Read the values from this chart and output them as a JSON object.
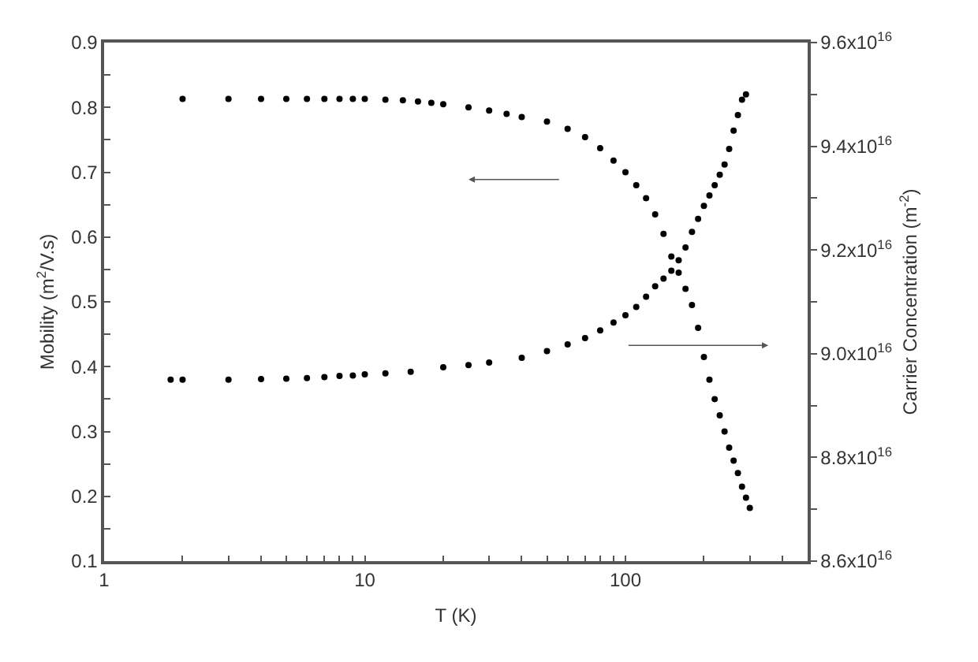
{
  "chart_data": {
    "type": "scatter",
    "xlabel": "T (K)",
    "ylabel": "Mobility (m$^{2}$/V.s)",
    "y2label": "Carrier Concentration (m$^{-2}$)",
    "log": "x",
    "grid": false,
    "marker": "circle",
    "xlim": [
      1,
      500
    ],
    "xticks": [
      1,
      {
        "value": 2,
        "label": null
      },
      {
        "value": 3,
        "label": null
      },
      {
        "value": 4,
        "label": null
      },
      {
        "value": 5,
        "label": null
      },
      {
        "value": 6,
        "label": null
      },
      {
        "value": 7,
        "label": null
      },
      {
        "value": 8,
        "label": null
      },
      {
        "value": 9,
        "label": null
      },
      10,
      {
        "value": 20,
        "label": null
      },
      {
        "value": 30,
        "label": null
      },
      {
        "value": 40,
        "label": null
      },
      {
        "value": 50,
        "label": null
      },
      {
        "value": 60,
        "label": null
      },
      {
        "value": 70,
        "label": null
      },
      {
        "value": 80,
        "label": null
      },
      {
        "value": 90,
        "label": null
      },
      100,
      {
        "value": 200,
        "label": null
      },
      {
        "value": 300,
        "label": null
      },
      {
        "value": 400,
        "label": null
      }
    ],
    "ylim": [
      0.1,
      0.9
    ],
    "yticks": [
      0.1,
      0.2,
      0.3,
      0.4,
      0.5,
      0.6,
      0.7,
      0.8,
      0.9,
      {
        "value": 0.15,
        "label": null
      },
      {
        "value": 0.25,
        "label": null
      },
      {
        "value": 0.35,
        "label": null
      },
      {
        "value": 0.45,
        "label": null
      },
      {
        "value": 0.55,
        "label": null
      },
      {
        "value": 0.65,
        "label": null
      },
      {
        "value": 0.75,
        "label": null
      },
      {
        "value": 0.85,
        "label": null
      }
    ],
    "y2lim": [
      8.6e+16,
      9.6e+16
    ],
    "y2ticks": [
      {
        "value": 8.6e+16,
        "label": "8.6x10$^{16}$"
      },
      {
        "value": 8.8e+16,
        "label": "8.8x10$^{16}$"
      },
      {
        "value": 9e+16,
        "label": "9.0x10$^{16}$"
      },
      {
        "value": 9.2e+16,
        "label": "9.2x10$^{16}$"
      },
      {
        "value": 9.4e+16,
        "label": "9.4x10$^{16}$"
      },
      {
        "value": 9.6e+16,
        "label": "9.6x10$^{16}$"
      },
      {
        "value": 8.7e+16,
        "label": null
      },
      {
        "value": 8.9e+16,
        "label": null
      },
      {
        "value": 9.1e+16,
        "label": null
      },
      {
        "value": 9.3e+16,
        "label": null
      },
      {
        "value": 9.5e+16,
        "label": null
      }
    ],
    "series": [
      {
        "color": "#000000",
        "x": [
          2,
          3,
          4,
          5,
          6,
          7,
          8,
          9,
          10,
          12,
          14,
          16,
          18,
          20,
          25,
          30,
          35,
          40,
          50,
          60,
          70,
          80,
          90,
          100,
          110,
          120,
          130,
          140,
          150,
          160,
          170,
          180,
          190,
          200,
          210,
          220,
          230,
          240,
          250,
          260,
          270,
          280,
          290,
          300
        ],
        "values": [
          0.813,
          0.813,
          0.813,
          0.813,
          0.813,
          0.813,
          0.813,
          0.813,
          0.813,
          0.812,
          0.811,
          0.809,
          0.807,
          0.805,
          0.8,
          0.795,
          0.79,
          0.785,
          0.778,
          0.767,
          0.754,
          0.737,
          0.718,
          0.7,
          0.68,
          0.66,
          0.635,
          0.605,
          0.57,
          0.545,
          0.52,
          0.495,
          0.46,
          0.415,
          0.38,
          0.35,
          0.325,
          0.3,
          0.275,
          0.255,
          0.236,
          0.215,
          0.198,
          0.182
        ]
      },
      {
        "color": "#000000",
        "axis": "y2",
        "x": [
          1.8,
          2,
          3,
          4,
          5,
          6,
          7,
          8,
          9,
          10,
          12,
          15,
          20,
          25,
          30,
          40,
          50,
          60,
          70,
          80,
          90,
          100,
          110,
          120,
          130,
          140,
          150,
          160,
          170,
          180,
          190,
          200,
          210,
          220,
          230,
          240,
          250,
          260,
          270,
          280,
          290
        ],
        "values": [
          8.95e+16,
          8.95e+16,
          8.95e+16,
          8.951e+16,
          8.952e+16,
          8.953e+16,
          8.955e+16,
          8.957e+16,
          8.958e+16,
          8.96e+16,
          8.962e+16,
          8.965e+16,
          8.974e+16,
          8.978e+16,
          8.983e+16,
          8.992e+16,
          9.005e+16,
          9.018e+16,
          9.03e+16,
          9.045e+16,
          9.06e+16,
          9.074e+16,
          9.09e+16,
          9.11e+16,
          9.13e+16,
          9.145e+16,
          9.16e+16,
          9.18e+16,
          9.205e+16,
          9.235e+16,
          9.26e+16,
          9.285e+16,
          9.305e+16,
          9.325e+16,
          9.345e+16,
          9.365e+16,
          9.395e+16,
          9.43e+16,
          9.46e+16,
          9.49e+16,
          9.5e+16
        ]
      }
    ]
  }
}
